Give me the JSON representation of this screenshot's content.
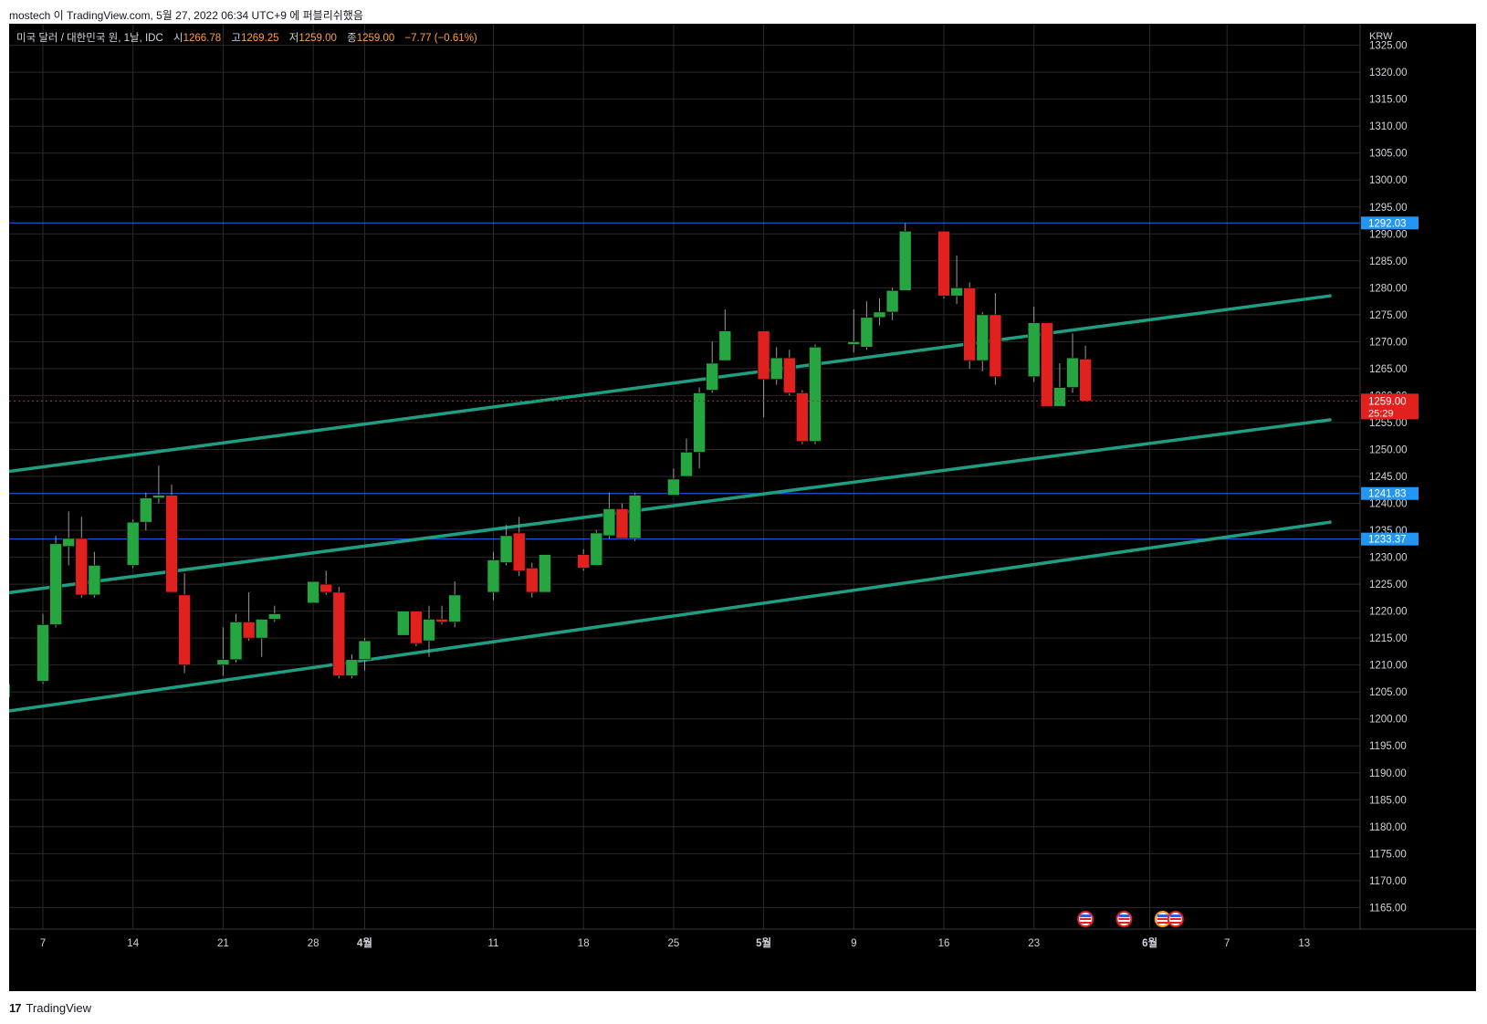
{
  "caption": "mostech 이 TradingView.com, 5월 27, 2022 06:34 UTC+9 에 퍼블리쉬했음",
  "footer": {
    "logo_text": "17",
    "brand": "TradingView"
  },
  "colors": {
    "background": "#000000",
    "grid": "#2a2a2a",
    "up": "#26a641",
    "down": "#e0211d",
    "trend": "#1f9e84",
    "hline": "#2962ff",
    "label_blue": "#2196f3",
    "label_red": "#e0211d",
    "text": "#d1d4dc",
    "ohlc_value": "#ff9f43"
  },
  "legend": {
    "symbol": "미국 달러 / 대한민국 원, 1날, IDC",
    "open_label": "시",
    "open": "1266.78",
    "high_label": "고",
    "high": "1269.25",
    "low_label": "저",
    "low": "1259.00",
    "close_label": "종",
    "close": "1259.00",
    "change": "−7.77 (−0.61%)"
  },
  "chart_data": {
    "type": "candlestick",
    "currency": "KRW",
    "ylim": [
      1161,
      1329
    ],
    "y_ticks": [
      1165,
      1170,
      1175,
      1180,
      1185,
      1190,
      1195,
      1200,
      1205,
      1210,
      1215,
      1220,
      1225,
      1230,
      1235,
      1240,
      1245,
      1250,
      1255,
      1260,
      1265,
      1270,
      1275,
      1280,
      1285,
      1290,
      1295,
      1300,
      1305,
      1310,
      1315,
      1320,
      1325
    ],
    "x_ticks": [
      {
        "label": "7",
        "date": "2022-03-07"
      },
      {
        "label": "14",
        "date": "2022-03-14"
      },
      {
        "label": "21",
        "date": "2022-03-21"
      },
      {
        "label": "28",
        "date": "2022-03-28"
      },
      {
        "label": "4월",
        "date": "2022-04-01",
        "bold": true
      },
      {
        "label": "11",
        "date": "2022-04-11"
      },
      {
        "label": "18",
        "date": "2022-04-18"
      },
      {
        "label": "25",
        "date": "2022-04-25"
      },
      {
        "label": "5월",
        "date": "2022-05-02",
        "bold": true
      },
      {
        "label": "9",
        "date": "2022-05-09"
      },
      {
        "label": "16",
        "date": "2022-05-16"
      },
      {
        "label": "23",
        "date": "2022-05-23"
      },
      {
        "label": "6월",
        "date": "2022-06-01",
        "bold": true
      },
      {
        "label": "7",
        "date": "2022-06-07"
      },
      {
        "label": "13",
        "date": "2022-06-13"
      }
    ],
    "candles": [
      {
        "date": "2022-03-04",
        "open": 1204.0,
        "high": 1207.0,
        "low": 1202.0,
        "close": 1206.5
      },
      {
        "date": "2022-03-07",
        "open": 1207.0,
        "high": 1219.5,
        "low": 1206.5,
        "close": 1217.5
      },
      {
        "date": "2022-03-08",
        "open": 1217.5,
        "high": 1234.0,
        "low": 1217.0,
        "close": 1232.5
      },
      {
        "date": "2022-03-09",
        "open": 1232.0,
        "high": 1238.5,
        "low": 1228.5,
        "close": 1233.5
      },
      {
        "date": "2022-03-10",
        "open": 1233.5,
        "high": 1237.5,
        "low": 1222.5,
        "close": 1223.0
      },
      {
        "date": "2022-03-11",
        "open": 1223.0,
        "high": 1231.0,
        "low": 1222.5,
        "close": 1228.5
      },
      {
        "date": "2022-03-14",
        "open": 1228.5,
        "high": 1237.0,
        "low": 1228.0,
        "close": 1236.5
      },
      {
        "date": "2022-03-15",
        "open": 1236.5,
        "high": 1242.0,
        "low": 1235.0,
        "close": 1241.0
      },
      {
        "date": "2022-03-16",
        "open": 1241.0,
        "high": 1247.0,
        "low": 1240.0,
        "close": 1241.5
      },
      {
        "date": "2022-03-17",
        "open": 1241.5,
        "high": 1243.5,
        "low": 1223.5,
        "close": 1223.5
      },
      {
        "date": "2022-03-18",
        "open": 1223.0,
        "high": 1227.0,
        "low": 1208.5,
        "close": 1210.0
      },
      {
        "date": "2022-03-21",
        "open": 1210.0,
        "high": 1217.0,
        "low": 1208.0,
        "close": 1211.0
      },
      {
        "date": "2022-03-22",
        "open": 1211.0,
        "high": 1219.5,
        "low": 1210.5,
        "close": 1218.0
      },
      {
        "date": "2022-03-23",
        "open": 1218.0,
        "high": 1223.5,
        "low": 1214.5,
        "close": 1215.0
      },
      {
        "date": "2022-03-24",
        "open": 1215.0,
        "high": 1218.5,
        "low": 1211.5,
        "close": 1218.5
      },
      {
        "date": "2022-03-25",
        "open": 1218.5,
        "high": 1221.0,
        "low": 1218.0,
        "close": 1219.5
      },
      {
        "date": "2022-03-28",
        "open": 1221.5,
        "high": 1225.5,
        "low": 1221.5,
        "close": 1225.5
      },
      {
        "date": "2022-03-29",
        "open": 1225.0,
        "high": 1227.5,
        "low": 1223.0,
        "close": 1223.5
      },
      {
        "date": "2022-03-30",
        "open": 1223.5,
        "high": 1224.5,
        "low": 1207.5,
        "close": 1208.0
      },
      {
        "date": "2022-03-31",
        "open": 1208.0,
        "high": 1212.0,
        "low": 1207.5,
        "close": 1211.0
      },
      {
        "date": "2022-04-01",
        "open": 1211.0,
        "high": 1215.0,
        "low": 1209.0,
        "close": 1214.5
      },
      {
        "date": "2022-04-04",
        "open": 1215.5,
        "high": 1220.0,
        "low": 1215.5,
        "close": 1220.0
      },
      {
        "date": "2022-04-05",
        "open": 1220.0,
        "high": 1220.0,
        "low": 1213.5,
        "close": 1214.0
      },
      {
        "date": "2022-04-06",
        "open": 1214.5,
        "high": 1221.0,
        "low": 1211.5,
        "close": 1218.5
      },
      {
        "date": "2022-04-07",
        "open": 1218.5,
        "high": 1221.0,
        "low": 1217.5,
        "close": 1218.0
      },
      {
        "date": "2022-04-08",
        "open": 1218.0,
        "high": 1225.5,
        "low": 1217.0,
        "close": 1223.0
      },
      {
        "date": "2022-04-11",
        "open": 1223.5,
        "high": 1231.0,
        "low": 1222.0,
        "close": 1229.5
      },
      {
        "date": "2022-04-12",
        "open": 1229.0,
        "high": 1236.0,
        "low": 1228.5,
        "close": 1234.0
      },
      {
        "date": "2022-04-13",
        "open": 1234.5,
        "high": 1237.5,
        "low": 1226.5,
        "close": 1227.5
      },
      {
        "date": "2022-04-14",
        "open": 1228.0,
        "high": 1229.0,
        "low": 1222.5,
        "close": 1223.5
      },
      {
        "date": "2022-04-15",
        "open": 1223.5,
        "high": 1230.5,
        "low": 1223.5,
        "close": 1230.5
      },
      {
        "date": "2022-04-18",
        "open": 1230.5,
        "high": 1231.5,
        "low": 1227.5,
        "close": 1228.0
      },
      {
        "date": "2022-04-19",
        "open": 1228.5,
        "high": 1235.0,
        "low": 1228.5,
        "close": 1234.5
      },
      {
        "date": "2022-04-20",
        "open": 1234.0,
        "high": 1242.0,
        "low": 1233.5,
        "close": 1239.0
      },
      {
        "date": "2022-04-21",
        "open": 1239.0,
        "high": 1240.0,
        "low": 1233.5,
        "close": 1233.5
      },
      {
        "date": "2022-04-22",
        "open": 1233.5,
        "high": 1242.0,
        "low": 1233.0,
        "close": 1241.5
      },
      {
        "date": "2022-04-25",
        "open": 1241.5,
        "high": 1246.5,
        "low": 1241.5,
        "close": 1244.5
      },
      {
        "date": "2022-04-26",
        "open": 1245.0,
        "high": 1252.0,
        "low": 1245.0,
        "close": 1249.5
      },
      {
        "date": "2022-04-27",
        "open": 1249.5,
        "high": 1261.5,
        "low": 1246.5,
        "close": 1260.5
      },
      {
        "date": "2022-04-28",
        "open": 1261.0,
        "high": 1270.0,
        "low": 1260.5,
        "close": 1266.0
      },
      {
        "date": "2022-04-29",
        "open": 1266.5,
        "high": 1276.0,
        "low": 1266.5,
        "close": 1272.0
      },
      {
        "date": "2022-05-02",
        "open": 1272.0,
        "high": 1272.0,
        "low": 1256.0,
        "close": 1263.0
      },
      {
        "date": "2022-05-03",
        "open": 1263.0,
        "high": 1269.0,
        "low": 1262.0,
        "close": 1267.0
      },
      {
        "date": "2022-05-04",
        "open": 1267.0,
        "high": 1268.5,
        "low": 1260.0,
        "close": 1260.5
      },
      {
        "date": "2022-05-05",
        "open": 1260.5,
        "high": 1261.0,
        "low": 1251.0,
        "close": 1251.5
      },
      {
        "date": "2022-05-06",
        "open": 1251.5,
        "high": 1269.5,
        "low": 1251.0,
        "close": 1269.0
      },
      {
        "date": "2022-05-09",
        "open": 1269.5,
        "high": 1276.0,
        "low": 1268.0,
        "close": 1270.0
      },
      {
        "date": "2022-05-10",
        "open": 1269.0,
        "high": 1277.5,
        "low": 1268.5,
        "close": 1274.5
      },
      {
        "date": "2022-05-11",
        "open": 1274.5,
        "high": 1278.0,
        "low": 1273.0,
        "close": 1275.5
      },
      {
        "date": "2022-05-12",
        "open": 1275.5,
        "high": 1280.0,
        "low": 1274.0,
        "close": 1279.5
      },
      {
        "date": "2022-05-13",
        "open": 1279.5,
        "high": 1292.0,
        "low": 1279.5,
        "close": 1290.5
      },
      {
        "date": "2022-05-16",
        "open": 1290.5,
        "high": 1290.5,
        "low": 1278.0,
        "close": 1278.5
      },
      {
        "date": "2022-05-17",
        "open": 1278.5,
        "high": 1286.0,
        "low": 1277.0,
        "close": 1280.0
      },
      {
        "date": "2022-05-18",
        "open": 1280.0,
        "high": 1281.0,
        "low": 1265.0,
        "close": 1266.5
      },
      {
        "date": "2022-05-19",
        "open": 1266.5,
        "high": 1275.5,
        "low": 1264.5,
        "close": 1275.0
      },
      {
        "date": "2022-05-20",
        "open": 1275.0,
        "high": 1279.0,
        "low": 1262.0,
        "close": 1263.5
      },
      {
        "date": "2022-05-23",
        "open": 1263.5,
        "high": 1276.5,
        "low": 1262.5,
        "close": 1273.5
      },
      {
        "date": "2022-05-24",
        "open": 1273.5,
        "high": 1273.5,
        "low": 1258.0,
        "close": 1258.0
      },
      {
        "date": "2022-05-25",
        "open": 1258.0,
        "high": 1266.0,
        "low": 1258.0,
        "close": 1261.5
      },
      {
        "date": "2022-05-26",
        "open": 1261.5,
        "high": 1271.5,
        "low": 1260.5,
        "close": 1267.0
      },
      {
        "date": "2022-05-27",
        "open": 1266.78,
        "high": 1269.25,
        "low": 1259.0,
        "close": 1259.0
      }
    ],
    "horizontal_lines": [
      {
        "price": 1292.03,
        "label": "1292.03"
      },
      {
        "price": 1241.83,
        "label": "1241.83"
      },
      {
        "price": 1233.37,
        "label": "1233.37"
      }
    ],
    "current_price": {
      "price": 1259.0,
      "label": "1259.00",
      "countdown": "25:29"
    },
    "trend_lines": [
      {
        "start": {
          "date": "2022-03-03",
          "price": 1245.5
        },
        "end": {
          "date": "2022-06-15",
          "price": 1278.5
        }
      },
      {
        "start": {
          "date": "2022-03-03",
          "price": 1223.0
        },
        "end": {
          "date": "2022-06-15",
          "price": 1255.5
        }
      },
      {
        "start": {
          "date": "2022-03-03",
          "price": 1201.0
        },
        "end": {
          "date": "2022-06-15",
          "price": 1236.5
        }
      }
    ],
    "event_markers": [
      {
        "date": "2022-05-27",
        "icon": "us-flag-icon"
      },
      {
        "date": "2022-05-30",
        "icon": "us-flag-icon"
      },
      {
        "date": "2022-06-02",
        "icon": "us-flag-icon"
      },
      {
        "date": "2022-06-03",
        "icon": "us-flag-icon"
      }
    ]
  }
}
